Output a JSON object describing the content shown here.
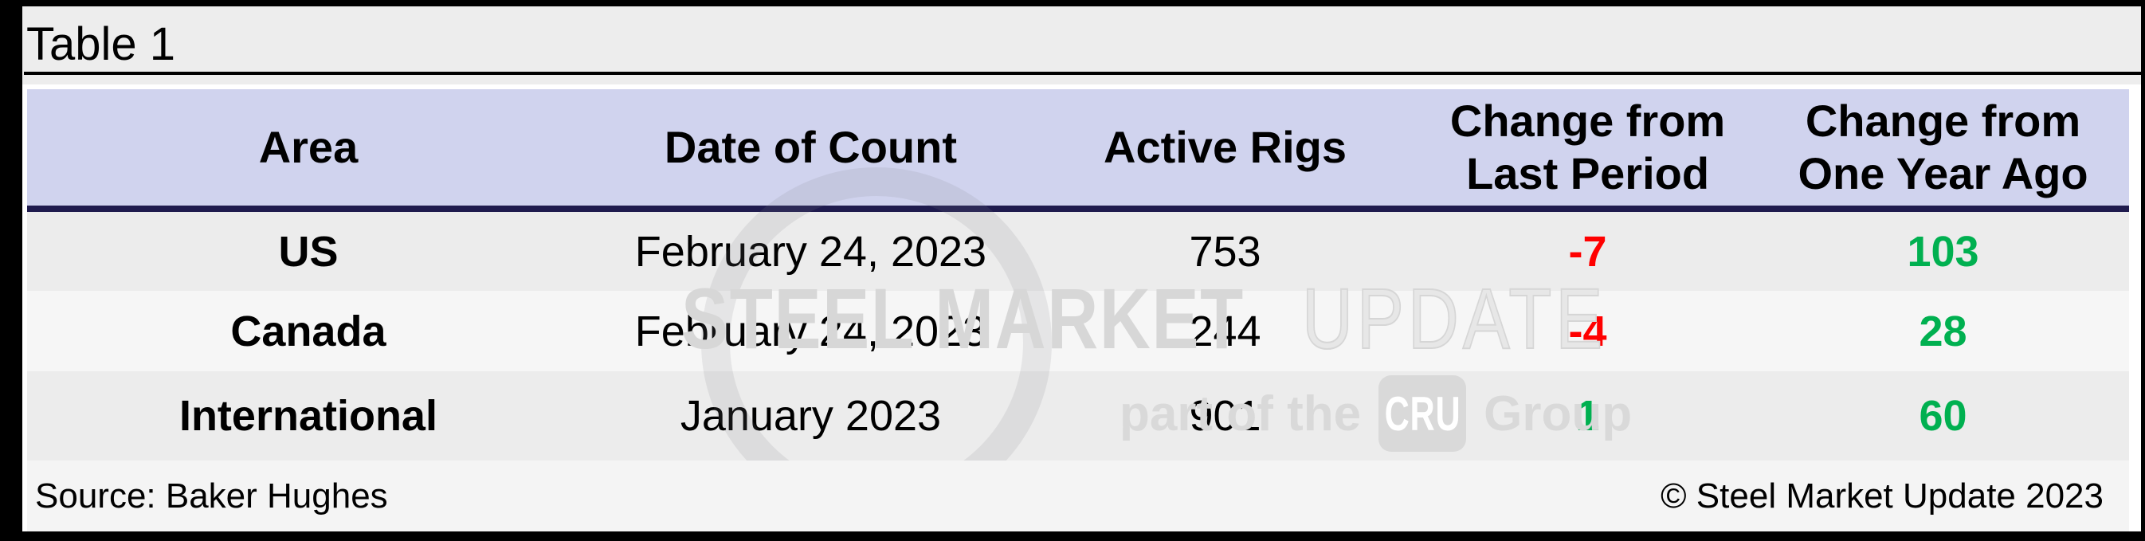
{
  "title": "Table 1",
  "table": {
    "columns": [
      {
        "line1": "Area",
        "line2": ""
      },
      {
        "line1": "Date of Count",
        "line2": ""
      },
      {
        "line1": "Active Rigs",
        "line2": ""
      },
      {
        "line1": "Change from",
        "line2": "Last Period"
      },
      {
        "line1": "Change from",
        "line2": "One Year Ago"
      }
    ],
    "rows": [
      {
        "area": "US",
        "date": "February 24, 2023",
        "active_rigs": "753",
        "change_last": "-7",
        "change_year": "103"
      },
      {
        "area": "Canada",
        "date": "February 24, 2023",
        "active_rigs": "244",
        "change_last": "-4",
        "change_year": "28"
      },
      {
        "area": "International",
        "date": "January 2023",
        "active_rigs": "901",
        "change_last": "1",
        "change_year": "60"
      }
    ]
  },
  "footer": {
    "source": "Source: Baker Hughes",
    "copyright": "© Steel Market Update 2023"
  },
  "watermark": {
    "brand_bold": "STEEL MARKET",
    "brand_light": "UPDATE",
    "tagline_prefix": "part of the",
    "tagline_badge": "CRU",
    "tagline_suffix": "Group"
  },
  "colors": {
    "negative_value": "#ff0000",
    "positive_value": "#00b050",
    "header_bg": "#d0d3ee",
    "header_rule": "#1f1b4e",
    "row_alt_a": "#ececec",
    "row_alt_b": "#f6f6f6"
  }
}
